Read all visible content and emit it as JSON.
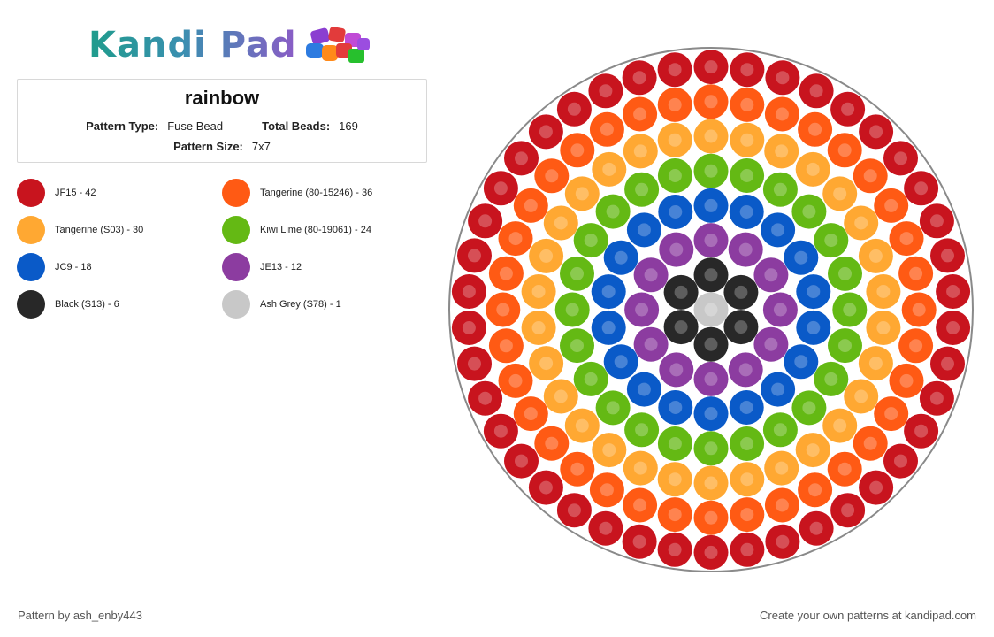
{
  "brand": {
    "name": "Kandi Pad"
  },
  "pattern": {
    "title": "rainbow",
    "type_label": "Pattern Type:",
    "type_value": "Fuse Bead",
    "beads_label": "Total Beads:",
    "beads_value": "169",
    "size_label": "Pattern Size:",
    "size_value": "7x7"
  },
  "legend": [
    {
      "label": "JF15 - 42",
      "color": "#c8141e"
    },
    {
      "label": "Tangerine (80-15246) - 36",
      "color": "#ff5a14"
    },
    {
      "label": "Tangerine (S03) - 30",
      "color": "#ffa832"
    },
    {
      "label": "Kiwi Lime (80-19061) - 24",
      "color": "#64b914"
    },
    {
      "label": "JC9 - 18",
      "color": "#0a5ac8"
    },
    {
      "label": "JE13 - 12",
      "color": "#8c3ca0"
    },
    {
      "label": "Black (S13) - 6",
      "color": "#282828"
    },
    {
      "label": "Ash Grey (S78) - 1",
      "color": "#c8c8c8"
    }
  ],
  "footer": {
    "credit": "Pattern by ash_enby443",
    "cta": "Create your own patterns at kandipad.com"
  }
}
